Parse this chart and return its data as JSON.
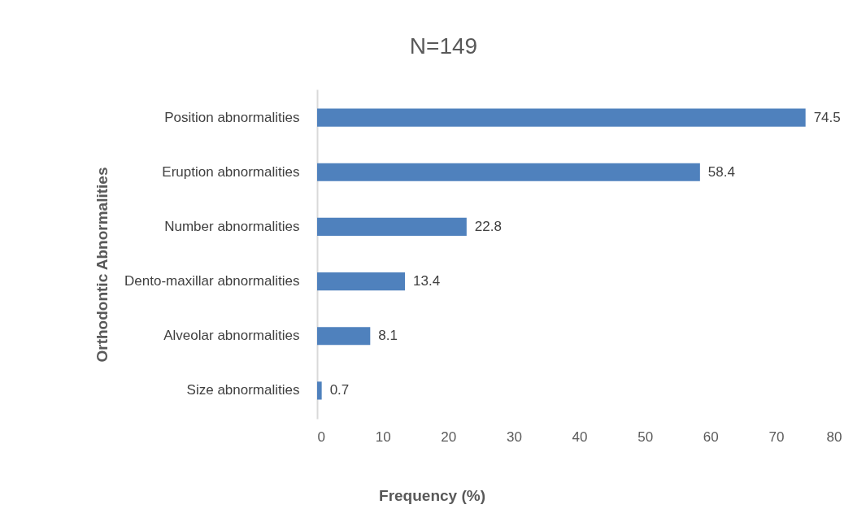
{
  "chart_data": {
    "type": "bar",
    "orientation": "horizontal",
    "title": "N=149",
    "xlabel": "Frequency (%)",
    "ylabel": "Orthodontic Abnormalities",
    "categories": [
      "Position abnormalities",
      "Eruption abnormalities",
      "Number abnormalities",
      "Dento-maxillar abnormalities",
      "Alveolar abnormalities",
      "Size abnormalities"
    ],
    "values": [
      74.5,
      58.4,
      22.8,
      13.4,
      8.1,
      0.7
    ],
    "color": "#4f81bd",
    "xlim": [
      0,
      80
    ],
    "xticks": [
      0,
      10,
      20,
      30,
      40,
      50,
      60,
      70,
      80
    ],
    "grid": false,
    "legend": false,
    "data_labels": true
  }
}
